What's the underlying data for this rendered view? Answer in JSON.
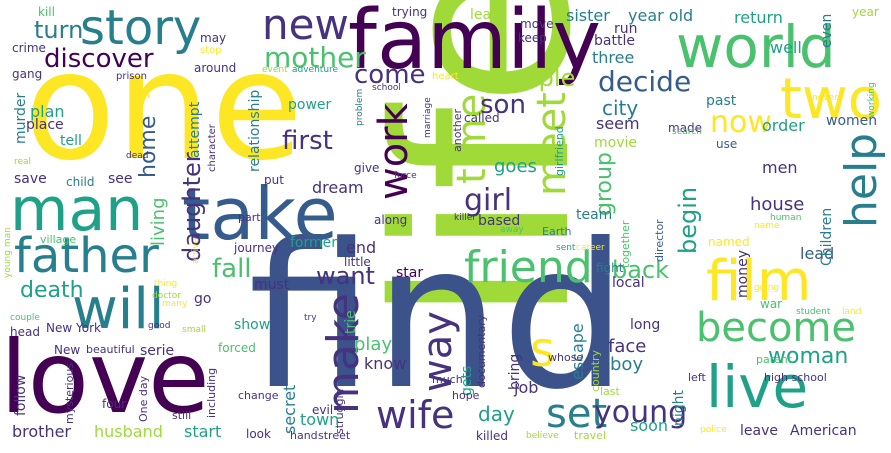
{
  "colors": {
    "background": "#ffffff",
    "c_yellow": "#fde725",
    "c_lime": "#a0da39",
    "c_green": "#4ac16d",
    "c_teal": "#1fa187",
    "c_cyan": "#277f8e",
    "c_blue": "#365c8d",
    "c_indigo": "#46327e",
    "c_purple": "#440154"
  },
  "words": [
    {
      "t": "life",
      "c": "#a0da39"
    },
    {
      "t": "find",
      "c": "#3b528b"
    },
    {
      "t": "one",
      "c": "#fde725"
    },
    {
      "t": "family",
      "c": "#440154"
    },
    {
      "t": "love",
      "c": "#440154"
    },
    {
      "t": "world",
      "c": "#4ac16d"
    },
    {
      "t": "take",
      "c": "#365c8d"
    },
    {
      "t": "man",
      "c": "#1fa187"
    },
    {
      "t": "two",
      "c": "#fde725"
    },
    {
      "t": "story",
      "c": "#277f8e"
    },
    {
      "t": "new",
      "c": "#46327e"
    },
    {
      "t": "father",
      "c": "#277f8e"
    },
    {
      "t": "friend",
      "c": "#4ac16d"
    },
    {
      "t": "will",
      "c": "#277f8e"
    },
    {
      "t": "film",
      "c": "#fde725"
    },
    {
      "t": "become",
      "c": "#4ac16d"
    },
    {
      "t": "live",
      "c": "#1fa187"
    },
    {
      "t": "way",
      "c": "#46327e"
    },
    {
      "t": "make",
      "c": "#46327e"
    },
    {
      "t": "wife",
      "c": "#46327e"
    },
    {
      "t": "set",
      "c": "#277f8e"
    },
    {
      "t": "time",
      "c": "#a0da39"
    },
    {
      "t": "meet",
      "c": "#a0da39"
    },
    {
      "t": "work",
      "c": "#440154"
    },
    {
      "t": "help",
      "c": "#277f8e"
    },
    {
      "t": "s",
      "c": "#fde725"
    },
    {
      "t": "young",
      "c": "#46327e"
    },
    {
      "t": "mother",
      "c": "#4ac16d"
    },
    {
      "t": "discover",
      "c": "#440154"
    },
    {
      "t": "turn",
      "c": "#277f8e"
    },
    {
      "t": "come",
      "c": "#46327e"
    },
    {
      "t": "people",
      "c": "#a0da39"
    },
    {
      "t": "decide",
      "c": "#365c8d"
    },
    {
      "t": "son",
      "c": "#46327e"
    },
    {
      "t": "now",
      "c": "#fde725"
    },
    {
      "t": "girl",
      "c": "#46327e"
    },
    {
      "t": "group",
      "c": "#4ac16d"
    },
    {
      "t": "begin",
      "c": "#1fa187"
    },
    {
      "t": "first",
      "c": "#46327e"
    },
    {
      "t": "daughter",
      "c": "#46327e"
    },
    {
      "t": "fall",
      "c": "#4ac16d"
    },
    {
      "t": "want",
      "c": "#46327e"
    },
    {
      "t": "death",
      "c": "#1fa187"
    },
    {
      "t": "back",
      "c": "#4ac16d"
    },
    {
      "t": "woman",
      "c": "#1fa187"
    },
    {
      "t": "day",
      "c": "#1fa187"
    },
    {
      "t": "city",
      "c": "#277f8e"
    },
    {
      "t": "home",
      "c": "#365c8d"
    },
    {
      "t": "living",
      "c": "#4ac16d"
    },
    {
      "t": "dream",
      "c": "#46327e"
    },
    {
      "t": "sister",
      "c": "#277f8e"
    },
    {
      "t": "year old",
      "c": "#277f8e"
    },
    {
      "t": "return",
      "c": "#1fa187"
    },
    {
      "t": "even",
      "c": "#277f8e"
    },
    {
      "t": "year",
      "c": "#a0da39"
    },
    {
      "t": "kill",
      "c": "#4ac16d"
    },
    {
      "t": "crime",
      "c": "#46327e"
    },
    {
      "t": "gang",
      "c": "#46327e"
    },
    {
      "t": "trying",
      "c": "#46327e"
    },
    {
      "t": "learn",
      "c": "#a0da39"
    },
    {
      "t": "move",
      "c": "#46327e"
    },
    {
      "t": "keep",
      "c": "#46327e"
    },
    {
      "t": "battle",
      "c": "#46327e"
    },
    {
      "t": "three",
      "c": "#277f8e"
    },
    {
      "t": "run",
      "c": "#46327e"
    },
    {
      "t": "well",
      "c": "#1fa187"
    },
    {
      "t": "may",
      "c": "#46327e"
    },
    {
      "t": "stop",
      "c": "#fde725"
    },
    {
      "t": "around",
      "c": "#46327e"
    },
    {
      "t": "event",
      "c": "#a0da39"
    },
    {
      "t": "adventure",
      "c": "#1fa187"
    },
    {
      "t": "prison",
      "c": "#46327e"
    },
    {
      "t": "heart",
      "c": "#fde725"
    },
    {
      "t": "school",
      "c": "#46327e"
    },
    {
      "t": "John",
      "c": "#fde725"
    },
    {
      "t": "plan",
      "c": "#1fa187"
    },
    {
      "t": "place",
      "c": "#46327e"
    },
    {
      "t": "power",
      "c": "#1fa187"
    },
    {
      "t": "murder",
      "c": "#277f8e"
    },
    {
      "t": "attempt",
      "c": "#277f8e"
    },
    {
      "t": "relationship",
      "c": "#277f8e"
    },
    {
      "t": "character",
      "c": "#46327e"
    },
    {
      "t": "problem",
      "c": "#277f8e"
    },
    {
      "t": "marriage",
      "c": "#46327e"
    },
    {
      "t": "called",
      "c": "#46327e"
    },
    {
      "t": "seem",
      "c": "#46327e"
    },
    {
      "t": "movie",
      "c": "#a0da39"
    },
    {
      "t": "made",
      "c": "#46327e"
    },
    {
      "t": "past",
      "c": "#277f8e"
    },
    {
      "t": "order",
      "c": "#1fa187"
    },
    {
      "t": "search",
      "c": "#4ac16d"
    },
    {
      "t": "women",
      "c": "#365c8d"
    },
    {
      "t": "use",
      "c": "#365c8d"
    },
    {
      "t": "men",
      "c": "#46327e"
    },
    {
      "t": "tell",
      "c": "#1fa187"
    },
    {
      "t": "dead",
      "c": "#46327e"
    },
    {
      "t": "real",
      "c": "#a0da39"
    },
    {
      "t": "child",
      "c": "#277f8e"
    },
    {
      "t": "save",
      "c": "#46327e"
    },
    {
      "t": "see",
      "c": "#46327e"
    },
    {
      "t": "give",
      "c": "#46327e"
    },
    {
      "t": "put",
      "c": "#46327e"
    },
    {
      "t": "force",
      "c": "#46327e"
    },
    {
      "t": "another",
      "c": "#46327e"
    },
    {
      "t": "goes",
      "c": "#1fa187"
    },
    {
      "t": "girlfriend",
      "c": "#1fa187"
    },
    {
      "t": "together",
      "c": "#4ac16d"
    },
    {
      "t": "team",
      "c": "#277f8e"
    },
    {
      "t": "based",
      "c": "#46327e"
    },
    {
      "t": "house",
      "c": "#46327e"
    },
    {
      "t": "Earth",
      "c": "#277f8e"
    },
    {
      "t": "director",
      "c": "#365c8d"
    },
    {
      "t": "named",
      "c": "#fde725"
    },
    {
      "t": "lead",
      "c": "#365c8d"
    },
    {
      "t": "Children",
      "c": "#277f8e"
    },
    {
      "t": "working",
      "c": "#4ac16d"
    },
    {
      "t": "never",
      "c": "#fde725"
    },
    {
      "t": "name",
      "c": "#fde725"
    },
    {
      "t": "human",
      "c": "#4ac16d"
    },
    {
      "t": "young man",
      "c": "#a0da39"
    },
    {
      "t": "village",
      "c": "#4ac16d"
    },
    {
      "t": "arrive",
      "c": "#fde725"
    },
    {
      "t": "part",
      "c": "#46327e"
    },
    {
      "t": "journey",
      "c": "#46327e"
    },
    {
      "t": "former",
      "c": "#1fa187"
    },
    {
      "t": "end",
      "c": "#46327e"
    },
    {
      "t": "little",
      "c": "#46327e"
    },
    {
      "t": "star",
      "c": "#440154"
    },
    {
      "t": "along",
      "c": "#46327e"
    },
    {
      "t": "killer",
      "c": "#46327e"
    },
    {
      "t": "away",
      "c": "#4ac16d"
    },
    {
      "t": "sent",
      "c": "#1fa187"
    },
    {
      "t": "career",
      "c": "#fde725"
    },
    {
      "t": "fight",
      "c": "#277f8e"
    },
    {
      "t": "local",
      "c": "#46327e"
    },
    {
      "t": "money",
      "c": "#46327e"
    },
    {
      "t": "going",
      "c": "#fde725"
    },
    {
      "t": "war",
      "c": "#4ac16d"
    },
    {
      "t": "student",
      "c": "#4ac16d"
    },
    {
      "t": "land",
      "c": "#fde725"
    },
    {
      "t": "thing",
      "c": "#fde725"
    },
    {
      "t": "doctor",
      "c": "#a0da39"
    },
    {
      "t": "must",
      "c": "#46327e"
    },
    {
      "t": "go",
      "c": "#46327e"
    },
    {
      "t": "many",
      "c": "#fde725"
    },
    {
      "t": "show",
      "c": "#1fa187"
    },
    {
      "t": "try",
      "c": "#46327e"
    },
    {
      "t": "trie",
      "c": "#4ac16d"
    },
    {
      "t": "couple",
      "c": "#4ac16d"
    },
    {
      "t": "head",
      "c": "#46327e"
    },
    {
      "t": "New York",
      "c": "#46327e"
    },
    {
      "t": "good",
      "c": "#46327e"
    },
    {
      "t": "small",
      "c": "#a0da39"
    },
    {
      "t": "beautiful",
      "c": "#46327e"
    },
    {
      "t": "serie",
      "c": "#46327e"
    },
    {
      "t": "forced",
      "c": "#4ac16d"
    },
    {
      "t": "play",
      "c": "#4ac16d"
    },
    {
      "t": "know",
      "c": "#46327e"
    },
    {
      "t": "gets",
      "c": "#1fa187"
    },
    {
      "t": "documentary",
      "c": "#46327e"
    },
    {
      "t": "bring",
      "c": "#46327e"
    },
    {
      "t": "escape",
      "c": "#277f8e"
    },
    {
      "t": "country",
      "c": "#a0da39"
    },
    {
      "t": "face",
      "c": "#46327e"
    },
    {
      "t": "long",
      "c": "#46327e"
    },
    {
      "t": "parent",
      "c": "#4ac16d"
    },
    {
      "t": "boy",
      "c": "#277f8e"
    },
    {
      "t": "high school",
      "c": "#46327e"
    },
    {
      "t": "night",
      "c": "#277f8e"
    },
    {
      "t": "left",
      "c": "#46327e"
    },
    {
      "t": "follow",
      "c": "#46327e"
    },
    {
      "t": "mysterious",
      "c": "#46327e"
    },
    {
      "t": "New",
      "c": "#46327e"
    },
    {
      "t": "One day",
      "c": "#46327e"
    },
    {
      "t": "including",
      "c": "#46327e"
    },
    {
      "t": "secret",
      "c": "#277f8e"
    },
    {
      "t": "much",
      "c": "#46327e"
    },
    {
      "t": "job",
      "c": "#46327e"
    },
    {
      "t": "hope",
      "c": "#46327e"
    },
    {
      "t": "last",
      "c": "#a0da39"
    },
    {
      "t": "whose",
      "c": "#46327e"
    },
    {
      "t": "four",
      "c": "#46327e"
    },
    {
      "t": "change",
      "c": "#46327e"
    },
    {
      "t": "evil",
      "c": "#46327e"
    },
    {
      "t": "struggle",
      "c": "#46327e"
    },
    {
      "t": "town",
      "c": "#1fa187"
    },
    {
      "t": "brother",
      "c": "#46327e"
    },
    {
      "t": "husband",
      "c": "#a0da39"
    },
    {
      "t": "start",
      "c": "#1fa187"
    },
    {
      "t": "still",
      "c": "#46327e"
    },
    {
      "t": "look",
      "c": "#46327e"
    },
    {
      "t": "hand",
      "c": "#46327e"
    },
    {
      "t": "street",
      "c": "#46327e"
    },
    {
      "t": "killed",
      "c": "#46327e"
    },
    {
      "t": "believe",
      "c": "#a0da39"
    },
    {
      "t": "travel",
      "c": "#a0da39"
    },
    {
      "t": "soon",
      "c": "#1fa187"
    },
    {
      "t": "police",
      "c": "#fde725"
    },
    {
      "t": "leave",
      "c": "#46327e"
    },
    {
      "t": "American",
      "c": "#46327e"
    }
  ]
}
